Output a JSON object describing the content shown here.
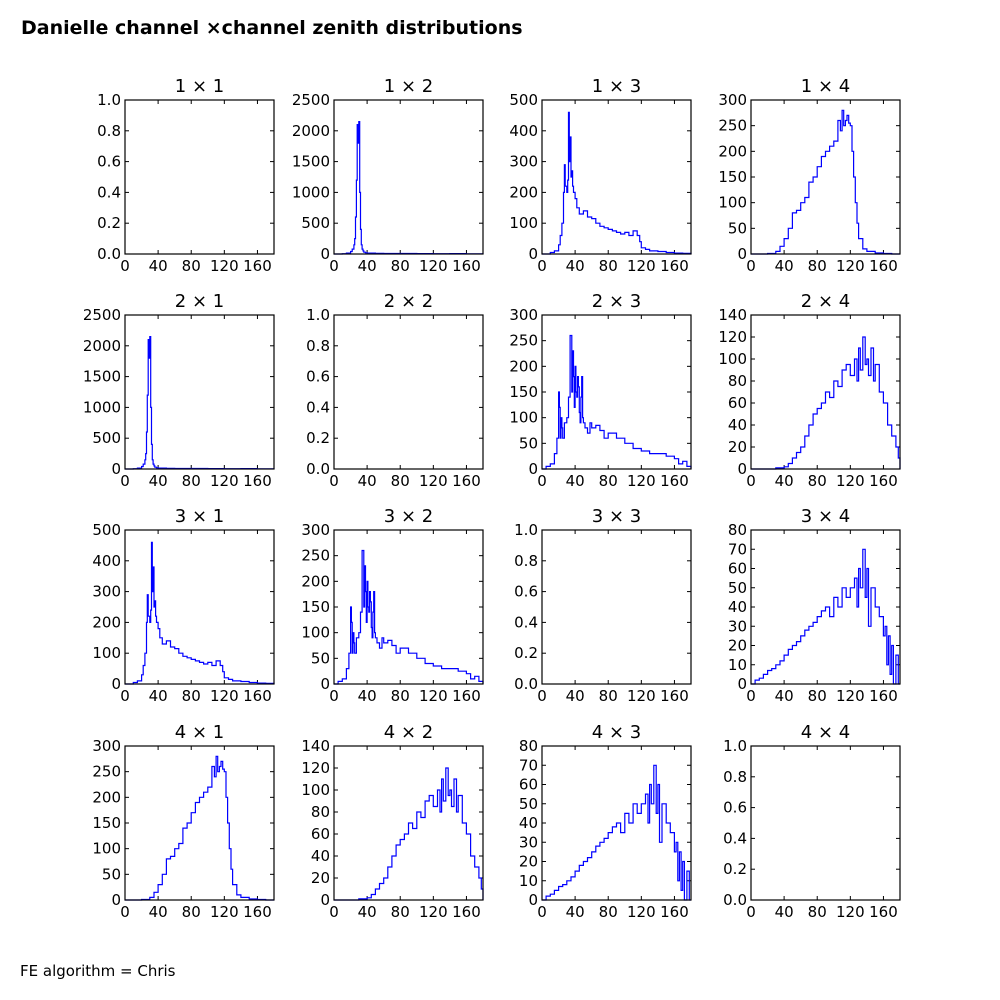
{
  "title": "Danielle channel ×channel zenith distributions",
  "footer": "FE algorithm = Chris",
  "colors": {
    "line": "#0000ff",
    "axes": "#000000",
    "background": "#ffffff"
  },
  "chart_data": [
    {
      "type": "line",
      "title": "1 × 1",
      "empty": true,
      "ylim": [
        0,
        1.0
      ],
      "yticks": [
        "0.0",
        "0.2",
        "0.4",
        "0.6",
        "0.8",
        "1.0"
      ],
      "xlim": [
        0,
        180
      ],
      "xticks": [
        "0",
        "40",
        "80",
        "120",
        "160"
      ],
      "x": [],
      "y": []
    },
    {
      "type": "line",
      "title": "1 × 2",
      "ylim": [
        0,
        2500
      ],
      "yticks": [
        "0",
        "500",
        "1000",
        "1500",
        "2000",
        "2500"
      ],
      "xlim": [
        0,
        180
      ],
      "xticks": [
        "0",
        "40",
        "80",
        "120",
        "160"
      ],
      "x": [
        0,
        10,
        15,
        20,
        22,
        24,
        25,
        26,
        27,
        28,
        29,
        30,
        31,
        32,
        33,
        34,
        35,
        36,
        38,
        40,
        50,
        60,
        80,
        100,
        120,
        140,
        160,
        170,
        180
      ],
      "y": [
        0,
        5,
        15,
        40,
        80,
        150,
        250,
        600,
        1200,
        2100,
        1800,
        2150,
        1000,
        400,
        150,
        80,
        50,
        30,
        20,
        15,
        10,
        8,
        8,
        6,
        5,
        6,
        4,
        3,
        0
      ]
    },
    {
      "type": "line",
      "title": "1 × 3",
      "ylim": [
        0,
        500
      ],
      "yticks": [
        "0",
        "100",
        "200",
        "300",
        "400",
        "500"
      ],
      "xlim": [
        0,
        180
      ],
      "xticks": [
        "0",
        "40",
        "80",
        "120",
        "160"
      ],
      "x": [
        0,
        10,
        15,
        20,
        22,
        24,
        26,
        27,
        28,
        30,
        31,
        32,
        33,
        34,
        35,
        36,
        37,
        38,
        40,
        42,
        45,
        50,
        55,
        60,
        65,
        70,
        75,
        80,
        85,
        90,
        95,
        100,
        105,
        110,
        115,
        118,
        120,
        125,
        130,
        140,
        150,
        160,
        170,
        180
      ],
      "y": [
        0,
        5,
        10,
        30,
        60,
        100,
        200,
        290,
        220,
        200,
        240,
        460,
        300,
        380,
        250,
        270,
        220,
        200,
        180,
        150,
        130,
        140,
        120,
        115,
        100,
        90,
        85,
        80,
        75,
        70,
        65,
        70,
        60,
        75,
        60,
        40,
        20,
        15,
        10,
        8,
        5,
        3,
        2,
        0
      ]
    },
    {
      "type": "line",
      "title": "1 × 4",
      "ylim": [
        0,
        300
      ],
      "yticks": [
        "0",
        "50",
        "100",
        "150",
        "200",
        "250",
        "300"
      ],
      "xlim": [
        0,
        180
      ],
      "xticks": [
        "0",
        "40",
        "80",
        "120",
        "160"
      ],
      "x": [
        0,
        10,
        20,
        30,
        35,
        40,
        45,
        50,
        55,
        60,
        65,
        70,
        75,
        80,
        85,
        90,
        95,
        100,
        105,
        108,
        110,
        112,
        114,
        116,
        118,
        120,
        122,
        124,
        126,
        128,
        130,
        135,
        140,
        150,
        160,
        170,
        180
      ],
      "y": [
        0,
        0,
        1,
        5,
        15,
        30,
        50,
        80,
        85,
        100,
        110,
        140,
        150,
        170,
        190,
        200,
        210,
        220,
        260,
        240,
        280,
        250,
        260,
        270,
        255,
        250,
        200,
        150,
        100,
        60,
        30,
        10,
        5,
        2,
        1,
        0,
        0
      ]
    },
    {
      "type": "line",
      "title": "2 × 1",
      "ylim": [
        0,
        2500
      ],
      "yticks": [
        "0",
        "500",
        "1000",
        "1500",
        "2000",
        "2500"
      ],
      "xlim": [
        0,
        180
      ],
      "xticks": [
        "0",
        "40",
        "80",
        "120",
        "160"
      ],
      "x": [
        0,
        10,
        15,
        20,
        22,
        24,
        25,
        26,
        27,
        28,
        29,
        30,
        31,
        32,
        33,
        34,
        35,
        36,
        38,
        40,
        50,
        60,
        80,
        100,
        120,
        140,
        160,
        170,
        180
      ],
      "y": [
        0,
        5,
        15,
        40,
        80,
        150,
        250,
        600,
        1200,
        2100,
        1800,
        2150,
        1000,
        400,
        150,
        80,
        50,
        30,
        20,
        15,
        10,
        8,
        8,
        6,
        5,
        6,
        4,
        3,
        0
      ]
    },
    {
      "type": "line",
      "title": "2 × 2",
      "empty": true,
      "ylim": [
        0,
        1.0
      ],
      "yticks": [
        "0.0",
        "0.2",
        "0.4",
        "0.6",
        "0.8",
        "1.0"
      ],
      "xlim": [
        0,
        180
      ],
      "xticks": [
        "0",
        "40",
        "80",
        "120",
        "160"
      ],
      "x": [],
      "y": []
    },
    {
      "type": "line",
      "title": "2 × 3",
      "ylim": [
        0,
        300
      ],
      "yticks": [
        "0",
        "50",
        "100",
        "150",
        "200",
        "250",
        "300"
      ],
      "xlim": [
        0,
        180
      ],
      "xticks": [
        "0",
        "40",
        "80",
        "120",
        "160"
      ],
      "x": [
        0,
        5,
        10,
        15,
        18,
        20,
        21,
        22,
        23,
        24,
        25,
        27,
        30,
        32,
        34,
        36,
        37,
        38,
        39,
        40,
        41,
        42,
        43,
        44,
        45,
        46,
        47,
        48,
        49,
        50,
        52,
        55,
        58,
        60,
        65,
        70,
        75,
        80,
        90,
        100,
        110,
        120,
        130,
        140,
        150,
        160,
        165,
        170,
        175,
        180
      ],
      "y": [
        0,
        5,
        10,
        30,
        60,
        150,
        120,
        60,
        100,
        80,
        60,
        90,
        100,
        140,
        260,
        150,
        230,
        180,
        120,
        200,
        150,
        140,
        180,
        160,
        110,
        90,
        140,
        180,
        100,
        90,
        80,
        70,
        90,
        80,
        85,
        75,
        60,
        70,
        60,
        50,
        40,
        35,
        30,
        30,
        25,
        20,
        10,
        15,
        5,
        0
      ]
    },
    {
      "type": "line",
      "title": "2 × 4",
      "ylim": [
        0,
        140
      ],
      "yticks": [
        "0",
        "20",
        "40",
        "60",
        "80",
        "100",
        "120",
        "140"
      ],
      "xlim": [
        0,
        180
      ],
      "xticks": [
        "0",
        "40",
        "80",
        "120",
        "160"
      ],
      "x": [
        0,
        10,
        20,
        30,
        40,
        45,
        50,
        55,
        60,
        65,
        70,
        75,
        80,
        85,
        90,
        95,
        100,
        105,
        110,
        115,
        120,
        125,
        128,
        130,
        132,
        135,
        138,
        140,
        142,
        145,
        148,
        150,
        155,
        160,
        165,
        170,
        175,
        178,
        180
      ],
      "y": [
        0,
        0,
        0,
        1,
        2,
        5,
        10,
        15,
        20,
        30,
        40,
        50,
        55,
        60,
        70,
        65,
        80,
        75,
        90,
        95,
        85,
        100,
        80,
        110,
        90,
        120,
        95,
        100,
        85,
        110,
        80,
        95,
        70,
        60,
        40,
        30,
        20,
        10,
        0
      ]
    },
    {
      "type": "line",
      "title": "3 × 1",
      "ylim": [
        0,
        500
      ],
      "yticks": [
        "0",
        "100",
        "200",
        "300",
        "400",
        "500"
      ],
      "xlim": [
        0,
        180
      ],
      "xticks": [
        "0",
        "40",
        "80",
        "120",
        "160"
      ],
      "x": [
        0,
        10,
        15,
        20,
        22,
        24,
        26,
        27,
        28,
        30,
        31,
        32,
        33,
        34,
        35,
        36,
        37,
        38,
        40,
        42,
        45,
        50,
        55,
        60,
        65,
        70,
        75,
        80,
        85,
        90,
        95,
        100,
        105,
        110,
        115,
        118,
        120,
        125,
        130,
        140,
        150,
        160,
        170,
        180
      ],
      "y": [
        0,
        5,
        10,
        30,
        60,
        100,
        200,
        290,
        220,
        200,
        240,
        460,
        300,
        380,
        250,
        270,
        220,
        200,
        180,
        150,
        130,
        140,
        120,
        115,
        100,
        90,
        85,
        80,
        75,
        70,
        65,
        70,
        60,
        75,
        60,
        40,
        20,
        15,
        10,
        8,
        5,
        3,
        2,
        0
      ]
    },
    {
      "type": "line",
      "title": "3 × 2",
      "ylim": [
        0,
        300
      ],
      "yticks": [
        "0",
        "50",
        "100",
        "150",
        "200",
        "250",
        "300"
      ],
      "xlim": [
        0,
        180
      ],
      "xticks": [
        "0",
        "40",
        "80",
        "120",
        "160"
      ],
      "x": [
        0,
        5,
        10,
        15,
        18,
        20,
        21,
        22,
        23,
        24,
        25,
        27,
        30,
        32,
        34,
        36,
        37,
        38,
        39,
        40,
        41,
        42,
        43,
        44,
        45,
        46,
        47,
        48,
        49,
        50,
        52,
        55,
        58,
        60,
        65,
        70,
        75,
        80,
        90,
        100,
        110,
        120,
        130,
        140,
        150,
        160,
        165,
        170,
        175,
        180
      ],
      "y": [
        0,
        5,
        10,
        30,
        60,
        150,
        120,
        60,
        100,
        80,
        60,
        90,
        100,
        140,
        260,
        150,
        230,
        180,
        120,
        200,
        150,
        140,
        180,
        160,
        110,
        90,
        140,
        180,
        100,
        90,
        80,
        70,
        90,
        80,
        85,
        75,
        60,
        70,
        60,
        50,
        40,
        35,
        30,
        30,
        25,
        20,
        10,
        15,
        5,
        0
      ]
    },
    {
      "type": "line",
      "title": "3 × 3",
      "empty": true,
      "ylim": [
        0,
        1.0
      ],
      "yticks": [
        "0.0",
        "0.2",
        "0.4",
        "0.6",
        "0.8",
        "1.0"
      ],
      "xlim": [
        0,
        180
      ],
      "xticks": [
        "0",
        "40",
        "80",
        "120",
        "160"
      ],
      "x": [],
      "y": []
    },
    {
      "type": "line",
      "title": "3 × 4",
      "ylim": [
        0,
        80
      ],
      "yticks": [
        "0",
        "10",
        "20",
        "30",
        "40",
        "50",
        "60",
        "70",
        "80"
      ],
      "xlim": [
        0,
        180
      ],
      "xticks": [
        "0",
        "40",
        "80",
        "120",
        "160"
      ],
      "x": [
        0,
        5,
        10,
        15,
        20,
        25,
        30,
        35,
        40,
        45,
        50,
        55,
        60,
        65,
        70,
        75,
        80,
        85,
        90,
        95,
        100,
        105,
        110,
        115,
        120,
        125,
        128,
        130,
        132,
        135,
        138,
        140,
        142,
        145,
        150,
        155,
        160,
        162,
        164,
        166,
        168,
        170,
        172,
        175,
        178,
        180
      ],
      "y": [
        0,
        2,
        3,
        5,
        7,
        8,
        10,
        12,
        15,
        18,
        20,
        22,
        25,
        28,
        30,
        32,
        35,
        38,
        40,
        35,
        45,
        40,
        50,
        45,
        50,
        55,
        40,
        60,
        50,
        70,
        45,
        60,
        30,
        50,
        40,
        35,
        25,
        30,
        10,
        25,
        5,
        20,
        0,
        15,
        0,
        0
      ]
    },
    {
      "type": "line",
      "title": "4 × 1",
      "ylim": [
        0,
        300
      ],
      "yticks": [
        "0",
        "50",
        "100",
        "150",
        "200",
        "250",
        "300"
      ],
      "xlim": [
        0,
        180
      ],
      "xticks": [
        "0",
        "40",
        "80",
        "120",
        "160"
      ],
      "x": [
        0,
        10,
        20,
        30,
        35,
        40,
        45,
        50,
        55,
        60,
        65,
        70,
        75,
        80,
        85,
        90,
        95,
        100,
        105,
        108,
        110,
        112,
        114,
        116,
        118,
        120,
        122,
        124,
        126,
        128,
        130,
        135,
        140,
        150,
        160,
        170,
        180
      ],
      "y": [
        0,
        0,
        1,
        5,
        15,
        30,
        50,
        80,
        85,
        100,
        110,
        140,
        150,
        170,
        190,
        200,
        210,
        220,
        260,
        240,
        280,
        250,
        260,
        270,
        255,
        250,
        200,
        150,
        100,
        60,
        30,
        10,
        5,
        2,
        1,
        0,
        0
      ]
    },
    {
      "type": "line",
      "title": "4 × 2",
      "ylim": [
        0,
        140
      ],
      "yticks": [
        "0",
        "20",
        "40",
        "60",
        "80",
        "100",
        "120",
        "140"
      ],
      "xlim": [
        0,
        180
      ],
      "xticks": [
        "0",
        "40",
        "80",
        "120",
        "160"
      ],
      "x": [
        0,
        10,
        20,
        30,
        40,
        45,
        50,
        55,
        60,
        65,
        70,
        75,
        80,
        85,
        90,
        95,
        100,
        105,
        110,
        115,
        120,
        125,
        128,
        130,
        132,
        135,
        138,
        140,
        142,
        145,
        148,
        150,
        155,
        160,
        165,
        170,
        175,
        178,
        180
      ],
      "y": [
        0,
        0,
        0,
        1,
        2,
        5,
        10,
        15,
        20,
        30,
        40,
        50,
        55,
        60,
        70,
        65,
        80,
        75,
        90,
        95,
        85,
        100,
        80,
        110,
        90,
        120,
        95,
        100,
        85,
        110,
        80,
        95,
        70,
        60,
        40,
        30,
        20,
        10,
        0
      ]
    },
    {
      "type": "line",
      "title": "4 × 3",
      "ylim": [
        0,
        80
      ],
      "yticks": [
        "0",
        "10",
        "20",
        "30",
        "40",
        "50",
        "60",
        "70",
        "80"
      ],
      "xlim": [
        0,
        180
      ],
      "xticks": [
        "0",
        "40",
        "80",
        "120",
        "160"
      ],
      "x": [
        0,
        5,
        10,
        15,
        20,
        25,
        30,
        35,
        40,
        45,
        50,
        55,
        60,
        65,
        70,
        75,
        80,
        85,
        90,
        95,
        100,
        105,
        110,
        115,
        120,
        125,
        128,
        130,
        132,
        135,
        138,
        140,
        142,
        145,
        150,
        155,
        160,
        162,
        164,
        166,
        168,
        170,
        172,
        175,
        178,
        180
      ],
      "y": [
        0,
        2,
        3,
        5,
        7,
        8,
        10,
        12,
        15,
        18,
        20,
        22,
        25,
        28,
        30,
        32,
        35,
        38,
        40,
        35,
        45,
        40,
        50,
        45,
        50,
        55,
        40,
        60,
        50,
        70,
        45,
        60,
        30,
        50,
        40,
        35,
        25,
        30,
        10,
        25,
        5,
        20,
        0,
        15,
        0,
        0
      ]
    },
    {
      "type": "line",
      "title": "4 × 4",
      "empty": true,
      "ylim": [
        0,
        1.0
      ],
      "yticks": [
        "0.0",
        "0.2",
        "0.4",
        "0.6",
        "0.8",
        "1.0"
      ],
      "xlim": [
        0,
        180
      ],
      "xticks": [
        "0",
        "40",
        "80",
        "120",
        "160"
      ],
      "x": [],
      "y": []
    }
  ]
}
